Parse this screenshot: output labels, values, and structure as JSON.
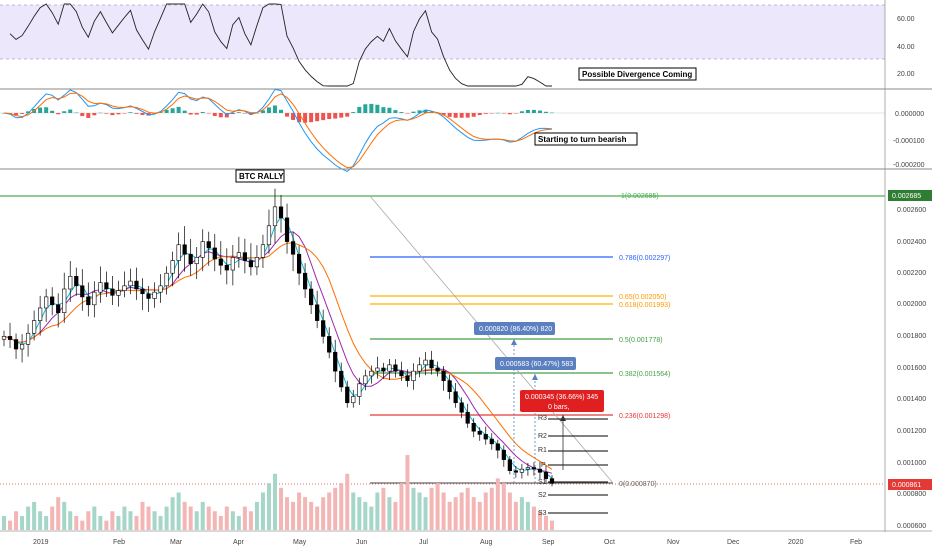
{
  "chart_data": {
    "type": "candlestick",
    "pair": "BTC",
    "time_axis": [
      "2019",
      "Feb",
      "Mar",
      "Apr",
      "May",
      "Jun",
      "Jul",
      "Aug",
      "Sep",
      "Oct",
      "Nov",
      "Dec",
      "2020",
      "Feb"
    ],
    "price_axis": {
      "ticks": [
        "0.002600",
        "0.002400",
        "0.002200",
        "0.002000",
        "0.001800",
        "0.001600",
        "0.001400",
        "0.001200",
        "0.001000",
        "0.000800",
        "0.000600"
      ],
      "current_price": "0.000861",
      "top_label": "0.002685"
    },
    "rsi": {
      "ticks": [
        "60.00",
        "40.00",
        "20.00"
      ],
      "annotation": "Possible Divergence Coming"
    },
    "macd": {
      "ticks": [
        "0.000000",
        "-0.000100",
        "-0.000200"
      ],
      "annotation": "Starting to turn bearish"
    },
    "annotations": {
      "rally": "BTC RALLY"
    },
    "fibonacci": [
      {
        "label": "1(0.002685)",
        "color": "#4caf50"
      },
      {
        "label": "0.786(0.002297)",
        "color": "#2962ff"
      },
      {
        "label": "0.65(0.002050)",
        "color": "#ffb300"
      },
      {
        "label": "0.618(0.001993)",
        "color": "#ffb300"
      },
      {
        "label": "0.5(0.001778)",
        "color": "#43a047"
      },
      {
        "label": "0.382(0.001564)",
        "color": "#43a047"
      },
      {
        "label": "0.236(0.001298)",
        "color": "#e53935"
      },
      {
        "label": "0(0.000870)",
        "color": "#666666"
      }
    ],
    "measurements": [
      {
        "label": "0.000820 (86.40%) 820",
        "color": "#5b7fbf"
      },
      {
        "label": "0.000583 (60.47%) 583",
        "color": "#5b7fbf"
      },
      {
        "label": "0.000345 (36.66%) 345",
        "sub": "0 bars,",
        "color": "#e02020"
      }
    ],
    "pivots": [
      "R3",
      "R2",
      "R1",
      "P",
      "S1",
      "S2",
      "S3"
    ],
    "series": {
      "close": [
        0.0018,
        0.00178,
        0.00172,
        0.00175,
        0.00182,
        0.0019,
        0.00198,
        0.00205,
        0.002,
        0.00195,
        0.0021,
        0.00218,
        0.00212,
        0.00205,
        0.002,
        0.00208,
        0.00214,
        0.0021,
        0.00206,
        0.00209,
        0.00212,
        0.00215,
        0.0021,
        0.00207,
        0.00204,
        0.00208,
        0.00212,
        0.0022,
        0.00228,
        0.00238,
        0.00232,
        0.00226,
        0.0023,
        0.0024,
        0.00236,
        0.00229,
        0.00225,
        0.00222,
        0.0023,
        0.00233,
        0.00228,
        0.00224,
        0.0023,
        0.00238,
        0.0025,
        0.00262,
        0.00255,
        0.0024,
        0.00232,
        0.0022,
        0.0021,
        0.002,
        0.0019,
        0.0018,
        0.0017,
        0.00158,
        0.00148,
        0.00138,
        0.00142,
        0.0015,
        0.00155,
        0.00158,
        0.0016,
        0.00158,
        0.00162,
        0.00158,
        0.00155,
        0.00152,
        0.00158,
        0.00162,
        0.00165,
        0.0016,
        0.00158,
        0.00152,
        0.00145,
        0.00138,
        0.00132,
        0.00125,
        0.0012,
        0.00118,
        0.00115,
        0.00112,
        0.00108,
        0.00102,
        0.00095,
        0.00094,
        0.00096,
        0.00097,
        0.00096,
        0.00094,
        0.0009,
        0.00087
      ],
      "volume": [
        3,
        2,
        4,
        3,
        5,
        6,
        4,
        3,
        5,
        7,
        6,
        4,
        3,
        2,
        4,
        5,
        3,
        2,
        4,
        3,
        5,
        4,
        3,
        6,
        5,
        4,
        3,
        5,
        7,
        8,
        6,
        5,
        4,
        6,
        5,
        4,
        3,
        5,
        4,
        3,
        5,
        4,
        6,
        8,
        10,
        12,
        9,
        7,
        6,
        8,
        7,
        6,
        5,
        7,
        8,
        9,
        10,
        12,
        8,
        7,
        6,
        5,
        8,
        9,
        7,
        6,
        10,
        16,
        9,
        8,
        7,
        9,
        10,
        8,
        6,
        7,
        8,
        9,
        7,
        6,
        8,
        9,
        11,
        10,
        8,
        6,
        7,
        6,
        5,
        4,
        3,
        2
      ]
    }
  }
}
